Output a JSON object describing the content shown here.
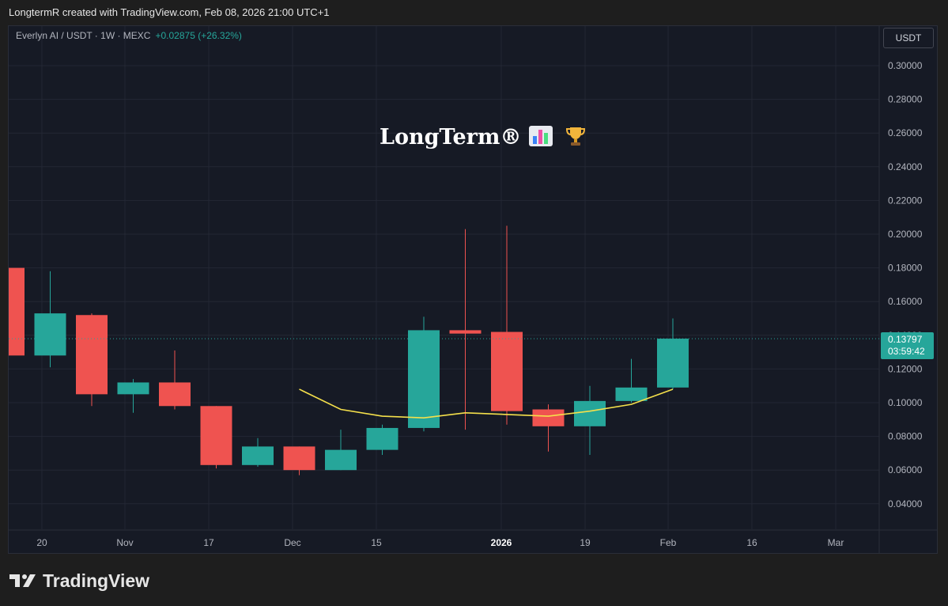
{
  "header": {
    "credit": "LongtermR created with TradingView.com, Feb 08, 2026 21:00 UTC+1"
  },
  "legend": {
    "symbol": "Everlyn AI / USDT · 1W · MEXC",
    "change": "+0.02875 (+26.32%)"
  },
  "watermark": {
    "text": "LongTerm®",
    "icons": [
      "bar-chart-emoji-icon",
      "trophy-emoji-icon"
    ]
  },
  "currency_badge": "USDT",
  "last_price": {
    "value": "0.13797",
    "countdown": "03:59:42",
    "color": "#26a69a"
  },
  "footer": {
    "brand": "TradingView"
  },
  "colors": {
    "up": "#26a69a",
    "down": "#ef5350",
    "ma": "#f5e04b",
    "background": "#161a25",
    "grid": "#232734"
  },
  "chart_data": {
    "type": "candlestick",
    "ylim": [
      0.03,
      0.3
    ],
    "y_ticks": [
      "0.30000",
      "0.28000",
      "0.26000",
      "0.24000",
      "0.22000",
      "0.20000",
      "0.18000",
      "0.16000",
      "0.14000",
      "0.12000",
      "0.10000",
      "0.08000",
      "0.06000",
      "0.04000"
    ],
    "x_labels": [
      "20",
      "Nov",
      "17",
      "Dec",
      "15",
      "2026",
      "19",
      "Feb",
      "16",
      "Mar"
    ],
    "bold_x_labels": [
      "2026"
    ],
    "grid": true,
    "candles": [
      {
        "open": 0.18,
        "high": 0.18,
        "low": 0.128,
        "close": 0.128
      },
      {
        "open": 0.128,
        "high": 0.178,
        "low": 0.121,
        "close": 0.153
      },
      {
        "open": 0.152,
        "high": 0.153,
        "low": 0.098,
        "close": 0.105
      },
      {
        "open": 0.105,
        "high": 0.114,
        "low": 0.094,
        "close": 0.112
      },
      {
        "open": 0.112,
        "high": 0.131,
        "low": 0.096,
        "close": 0.098
      },
      {
        "open": 0.098,
        "high": 0.098,
        "low": 0.061,
        "close": 0.063
      },
      {
        "open": 0.063,
        "high": 0.079,
        "low": 0.062,
        "close": 0.074
      },
      {
        "open": 0.074,
        "high": 0.074,
        "low": 0.057,
        "close": 0.06
      },
      {
        "open": 0.06,
        "high": 0.084,
        "low": 0.06,
        "close": 0.072
      },
      {
        "open": 0.072,
        "high": 0.087,
        "low": 0.069,
        "close": 0.085
      },
      {
        "open": 0.085,
        "high": 0.151,
        "low": 0.083,
        "close": 0.143
      },
      {
        "open": 0.143,
        "high": 0.203,
        "low": 0.084,
        "close": 0.141
      },
      {
        "open": 0.142,
        "high": 0.205,
        "low": 0.087,
        "close": 0.095
      },
      {
        "open": 0.096,
        "high": 0.099,
        "low": 0.071,
        "close": 0.086
      },
      {
        "open": 0.086,
        "high": 0.11,
        "low": 0.069,
        "close": 0.101
      },
      {
        "open": 0.101,
        "high": 0.126,
        "low": 0.1,
        "close": 0.109
      },
      {
        "open": 0.109,
        "high": 0.15,
        "low": 0.108,
        "close": 0.138
      }
    ],
    "moving_average": [
      null,
      null,
      null,
      null,
      null,
      null,
      null,
      0.108,
      0.096,
      0.092,
      0.091,
      0.094,
      0.093,
      0.092,
      0.095,
      0.099,
      0.108
    ]
  }
}
